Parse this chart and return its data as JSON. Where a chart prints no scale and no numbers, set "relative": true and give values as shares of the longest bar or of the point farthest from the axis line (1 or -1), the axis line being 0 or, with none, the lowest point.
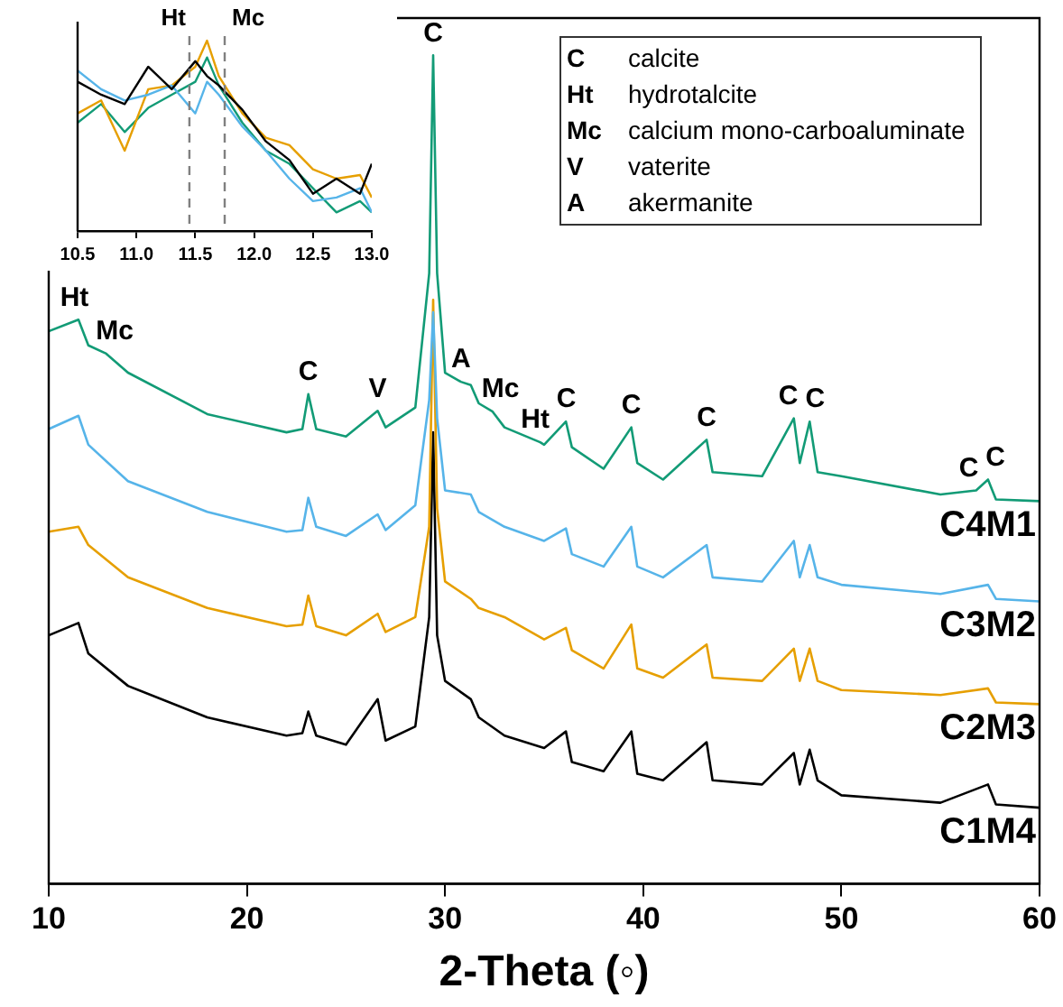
{
  "chart_data": [
    {
      "type": "line",
      "relative": true,
      "xlabel": "2-Theta (◦)",
      "xlim": [
        10,
        60
      ],
      "xticks": [
        10,
        20,
        30,
        40,
        50,
        60
      ],
      "tick_labels": "x",
      "marker": "none",
      "x": [
        10,
        11.5,
        12,
        14,
        18,
        22,
        22.8,
        23.1,
        23.5,
        25,
        26.6,
        27,
        28.5,
        29.2,
        29.4,
        29.6,
        30,
        31.3,
        31.7,
        33,
        35,
        36.1,
        36.4,
        38,
        39.4,
        39.7,
        41,
        43.2,
        43.5,
        46,
        47.6,
        47.9,
        48.4,
        48.8,
        50,
        55,
        57.4,
        57.8,
        60
      ],
      "series": [
        {
          "name": "C4M1",
          "color": "#129b76",
          "x": [
            10,
            11.5,
            12,
            12.9,
            14,
            18,
            22,
            22.8,
            23.1,
            23.5,
            25,
            26.6,
            27,
            28.5,
            29.2,
            29.4,
            29.6,
            30,
            30.8,
            31.3,
            31.7,
            32.4,
            33,
            34.8,
            35,
            36.1,
            36.4,
            38,
            39.4,
            39.7,
            41,
            43.2,
            43.5,
            46,
            47.6,
            47.9,
            48.4,
            48.8,
            50,
            55,
            56.8,
            57.4,
            57.8,
            60
          ],
          "values": [
            0.667,
            0.681,
            0.65,
            0.64,
            0.617,
            0.567,
            0.545,
            0.549,
            0.591,
            0.549,
            0.54,
            0.571,
            0.551,
            0.575,
            0.737,
            1,
            0.737,
            0.617,
            0.606,
            0.602,
            0.58,
            0.57,
            0.551,
            0.533,
            0.53,
            0.558,
            0.527,
            0.501,
            0.551,
            0.508,
            0.488,
            0.536,
            0.497,
            0.492,
            0.562,
            0.508,
            0.558,
            0.497,
            0.492,
            0.47,
            0.475,
            0.488,
            0.464,
            0.462
          ]
        },
        {
          "name": "C3M2",
          "color": "#56b4e9",
          "values": [
            0.549,
            0.565,
            0.53,
            0.486,
            0.449,
            0.425,
            0.427,
            0.466,
            0.431,
            0.42,
            0.446,
            0.427,
            0.457,
            0.584,
            0.69,
            0.562,
            0.475,
            0.47,
            0.449,
            0.431,
            0.414,
            0.429,
            0.398,
            0.383,
            0.431,
            0.383,
            0.37,
            0.409,
            0.37,
            0.365,
            0.414,
            0.37,
            0.409,
            0.37,
            0.361,
            0.35,
            0.361,
            0.344,
            0.341
          ]
        },
        {
          "name": "C2M3",
          "color": "#e69f00",
          "values": [
            0.425,
            0.431,
            0.409,
            0.37,
            0.333,
            0.311,
            0.313,
            0.348,
            0.311,
            0.3,
            0.326,
            0.304,
            0.322,
            0.431,
            0.705,
            0.453,
            0.365,
            0.344,
            0.333,
            0.322,
            0.295,
            0.309,
            0.282,
            0.26,
            0.313,
            0.26,
            0.249,
            0.289,
            0.249,
            0.245,
            0.284,
            0.245,
            0.284,
            0.245,
            0.234,
            0.228,
            0.236,
            0.219,
            0.217
          ]
        },
        {
          "name": "C1M4",
          "color": "#000000",
          "values": [
            0.3,
            0.315,
            0.278,
            0.239,
            0.201,
            0.179,
            0.182,
            0.208,
            0.179,
            0.168,
            0.223,
            0.173,
            0.19,
            0.322,
            0.545,
            0.3,
            0.245,
            0.223,
            0.201,
            0.179,
            0.164,
            0.184,
            0.147,
            0.136,
            0.184,
            0.133,
            0.125,
            0.171,
            0.125,
            0.12,
            0.158,
            0.12,
            0.162,
            0.125,
            0.107,
            0.098,
            0.12,
            0.096,
            0.092
          ]
        }
      ],
      "annotations": [
        {
          "text": "Ht",
          "x": 11.5,
          "y": 0.681
        },
        {
          "text": "Mc",
          "x": 12.9,
          "y": 0.64
        },
        {
          "text": "C",
          "x": 23.1,
          "y": 0.591
        },
        {
          "text": "V",
          "x": 26.6,
          "y": 0.571
        },
        {
          "text": "C",
          "x": 29.4,
          "y": 1
        },
        {
          "text": "A",
          "x": 30.8,
          "y": 0.606
        },
        {
          "text": "Mc",
          "x": 32.4,
          "y": 0.57
        },
        {
          "text": "Ht",
          "x": 34.8,
          "y": 0.533
        },
        {
          "text": "C",
          "x": 36.1,
          "y": 0.558
        },
        {
          "text": "C",
          "x": 39.4,
          "y": 0.551
        },
        {
          "text": "C",
          "x": 43.2,
          "y": 0.536
        },
        {
          "text": "C",
          "x": 47.6,
          "y": 0.562
        },
        {
          "text": "C",
          "x": 48.4,
          "y": 0.558
        },
        {
          "text": "C",
          "x": 56.8,
          "y": 0.475
        },
        {
          "text": "C",
          "x": 57.4,
          "y": 0.488
        },
        "C",
        "calcite",
        "Ht",
        "hydrotalcite",
        "Mc",
        "calcium mono-carboaluminate",
        "V",
        "vaterite",
        "A",
        "akermanite"
      ]
    },
    {
      "type": "line",
      "relative": true,
      "xlim": [
        10.5,
        13.0
      ],
      "xticks": [
        {
          "value": 10.5,
          "label": "10.5"
        },
        {
          "value": 11,
          "label": "11.0"
        },
        {
          "value": 11.5,
          "label": "11.5"
        },
        {
          "value": 12,
          "label": "12.0"
        },
        {
          "value": 12.5,
          "label": "12.5"
        },
        {
          "value": 13,
          "label": "13.0"
        }
      ],
      "tick_labels": "x",
      "marker": "none",
      "x": [
        10.5,
        10.7,
        10.9,
        11.1,
        11.3,
        11.5,
        11.6,
        11.7,
        11.9,
        12.1,
        12.3,
        12.5,
        12.7,
        12.9,
        13.0
      ],
      "series": [
        {
          "color": "#000000",
          "values": [
            0.784,
            0.716,
            0.667,
            0.863,
            0.745,
            0.892,
            0.814,
            0.765,
            0.637,
            0.471,
            0.373,
            0.196,
            0.275,
            0.196,
            0.353
          ]
        },
        {
          "color": "#56b4e9",
          "values": [
            0.843,
            0.745,
            0.686,
            0.716,
            0.765,
            0.618,
            0.784,
            0.716,
            0.549,
            0.422,
            0.275,
            0.157,
            0.176,
            0.225,
            0.098
          ]
        },
        {
          "color": "#e69f00",
          "values": [
            0.618,
            0.686,
            0.422,
            0.745,
            0.765,
            0.863,
            1.0,
            0.814,
            0.618,
            0.49,
            0.451,
            0.324,
            0.275,
            0.294,
            0.176
          ]
        },
        {
          "color": "#129b76",
          "values": [
            0.569,
            0.667,
            0.52,
            0.647,
            0.716,
            0.784,
            0.912,
            0.765,
            0.569,
            0.422,
            0.353,
            0.225,
            0.098,
            0.157,
            0.098
          ]
        }
      ],
      "ref_lines": [
        {
          "axis": "x",
          "value": 11.45,
          "label": "Ht",
          "color": "#808080",
          "line_style": "dashed"
        },
        {
          "axis": "x",
          "value": 11.75,
          "label": "Mc",
          "color": "#808080",
          "line_style": "dashed"
        }
      ]
    }
  ]
}
